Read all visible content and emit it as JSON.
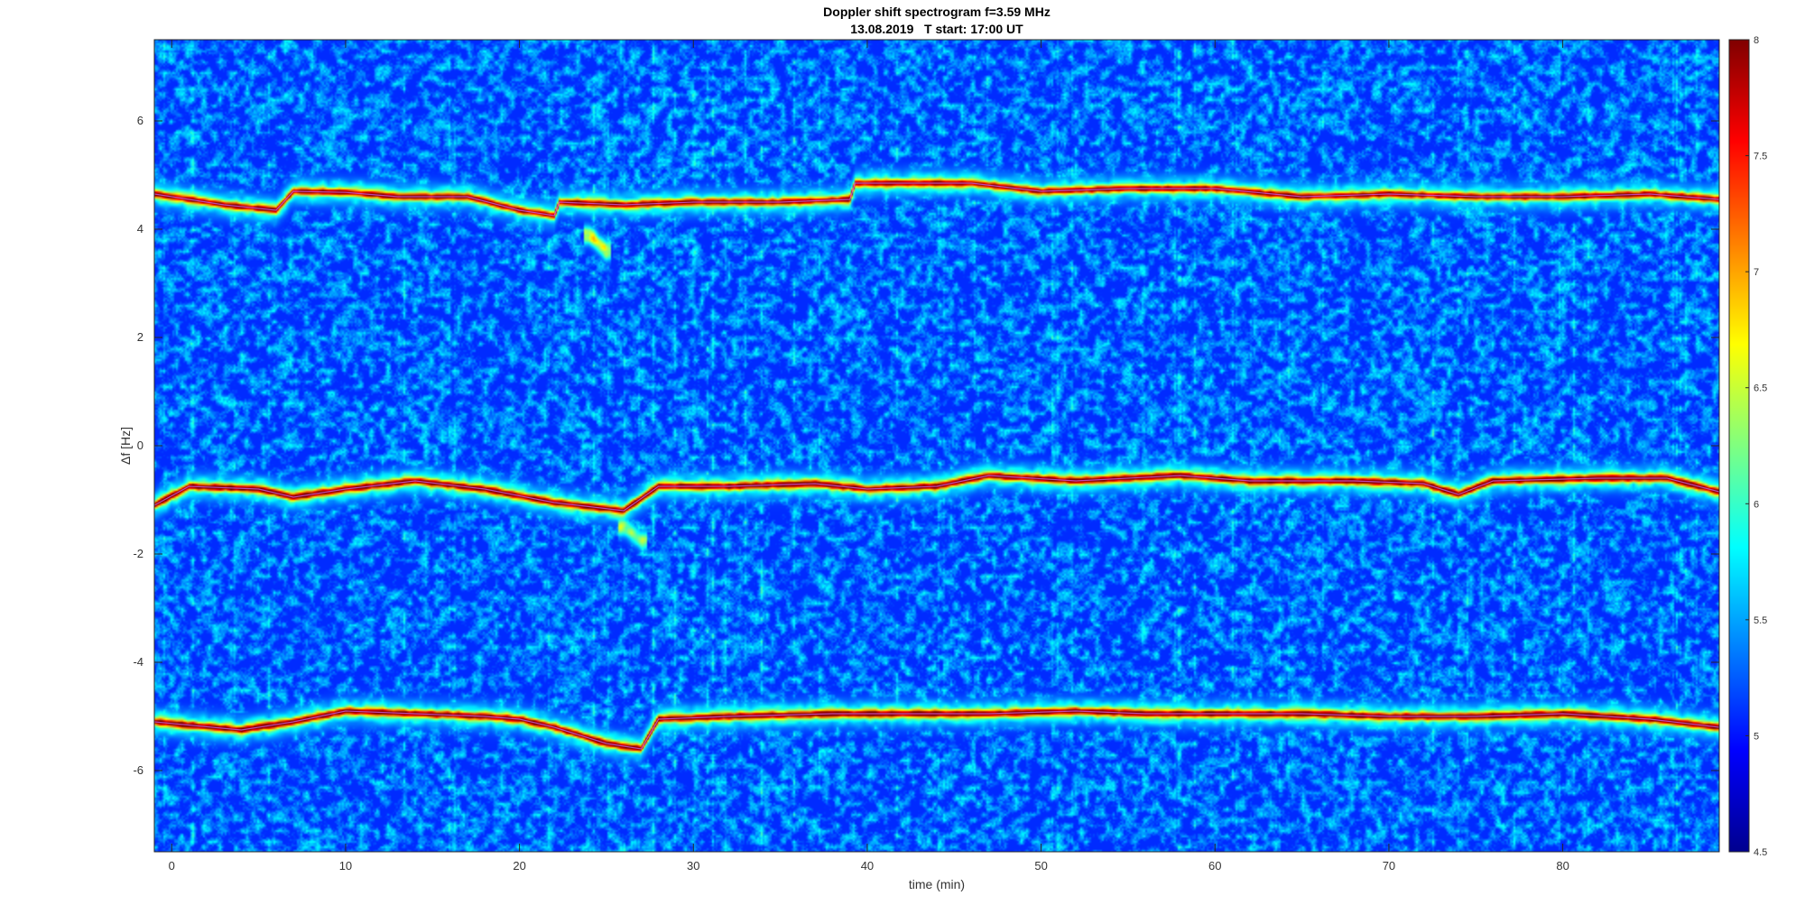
{
  "chart_data": {
    "type": "heatmap",
    "title": "Doppler shift spectrogram f=3.59 MHz",
    "subtitle": "13.08.2019   T start: 17:00 UT",
    "xlabel": "time (min)",
    "ylabel": "Δf [Hz]",
    "xlim": [
      -1,
      89
    ],
    "ylim": [
      -7.5,
      7.5
    ],
    "xticks": [
      "0",
      "10",
      "20",
      "30",
      "40",
      "50",
      "60",
      "70",
      "80"
    ],
    "yticks": [
      "6",
      "4",
      "2",
      "0",
      "-2",
      "-4",
      "-6"
    ],
    "colorbar": {
      "range": [
        4.5,
        8
      ],
      "ticks": [
        "8",
        "7.5",
        "7",
        "6.5",
        "6",
        "5.5",
        "5",
        "4.5"
      ],
      "colormap": "jet"
    },
    "background_level": 4.9,
    "traces": [
      {
        "peak_level": 7.8,
        "points": [
          [
            -1,
            4.65
          ],
          [
            3,
            4.45
          ],
          [
            6,
            4.35
          ],
          [
            7,
            4.7
          ],
          [
            10,
            4.68
          ],
          [
            13,
            4.6
          ],
          [
            17,
            4.6
          ],
          [
            20,
            4.35
          ],
          [
            22,
            4.25
          ],
          [
            22.3,
            4.5
          ],
          [
            26,
            4.45
          ],
          [
            30,
            4.5
          ],
          [
            35,
            4.5
          ],
          [
            39,
            4.55
          ],
          [
            39.3,
            4.85
          ],
          [
            46,
            4.85
          ],
          [
            50,
            4.7
          ],
          [
            55,
            4.75
          ],
          [
            60,
            4.75
          ],
          [
            65,
            4.6
          ],
          [
            70,
            4.65
          ],
          [
            75,
            4.6
          ],
          [
            80,
            4.6
          ],
          [
            85,
            4.65
          ],
          [
            89,
            4.55
          ]
        ]
      },
      {
        "peak_level": 8.0,
        "points": [
          [
            -1,
            -1.1
          ],
          [
            1,
            -0.75
          ],
          [
            5,
            -0.8
          ],
          [
            7,
            -0.95
          ],
          [
            10,
            -0.8
          ],
          [
            14,
            -0.65
          ],
          [
            18,
            -0.8
          ],
          [
            22,
            -1.05
          ],
          [
            26,
            -1.2
          ],
          [
            28,
            -0.75
          ],
          [
            32,
            -0.75
          ],
          [
            37,
            -0.7
          ],
          [
            40,
            -0.8
          ],
          [
            44,
            -0.75
          ],
          [
            47,
            -0.55
          ],
          [
            52,
            -0.65
          ],
          [
            58,
            -0.55
          ],
          [
            62,
            -0.65
          ],
          [
            68,
            -0.65
          ],
          [
            72,
            -0.7
          ],
          [
            74,
            -0.9
          ],
          [
            76,
            -0.65
          ],
          [
            82,
            -0.6
          ],
          [
            86,
            -0.6
          ],
          [
            89,
            -0.85
          ]
        ]
      },
      {
        "peak_level": 8.0,
        "points": [
          [
            -1,
            -5.1
          ],
          [
            4,
            -5.25
          ],
          [
            7,
            -5.1
          ],
          [
            10,
            -4.9
          ],
          [
            14,
            -4.95
          ],
          [
            18,
            -5.0
          ],
          [
            20,
            -5.05
          ],
          [
            22,
            -5.2
          ],
          [
            25,
            -5.5
          ],
          [
            27,
            -5.6
          ],
          [
            28,
            -5.05
          ],
          [
            32,
            -5.0
          ],
          [
            38,
            -4.95
          ],
          [
            42,
            -4.95
          ],
          [
            47,
            -4.95
          ],
          [
            52,
            -4.9
          ],
          [
            56,
            -4.95
          ],
          [
            60,
            -4.95
          ],
          [
            65,
            -4.95
          ],
          [
            70,
            -5.0
          ],
          [
            75,
            -5.0
          ],
          [
            80,
            -4.95
          ],
          [
            85,
            -5.05
          ],
          [
            89,
            -5.2
          ]
        ]
      }
    ],
    "side_fragments": [
      {
        "points": [
          [
            24,
            3.9
          ],
          [
            25,
            3.6
          ]
        ],
        "peak_level": 6.8
      },
      {
        "points": [
          [
            26,
            -1.5
          ],
          [
            27,
            -1.75
          ]
        ],
        "peak_level": 6.3
      }
    ],
    "grid": false,
    "legend": "none"
  }
}
